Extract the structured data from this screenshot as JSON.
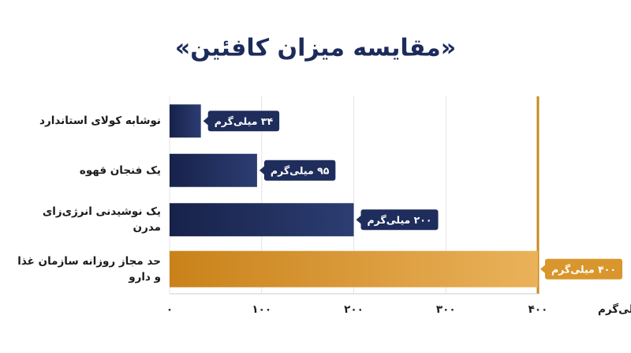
{
  "chart_data": {
    "type": "hbar",
    "title": "«مقایسه میزان کافئین»",
    "categories": [
      "نوشابه کولای استاندارد",
      "یک فنجان قهوه",
      "یک نوشیدنی انرژی‌زای مدرن",
      "حد مجاز روزانه سازمان غذا و دارو"
    ],
    "values": [
      34,
      95,
      200,
      400
    ],
    "value_labels": [
      "۳۴ میلی‌گرم",
      "۹۵ میلی‌گرم",
      "۲۰۰ میلی‌گرم",
      "۴۰۰ میلی‌گرم"
    ],
    "colors": [
      "#1f2d5c",
      "#1f2d5c",
      "#1f2d5c",
      "#d9962c"
    ],
    "xlim": [
      0,
      400
    ],
    "xticks": [
      {
        "value": 0,
        "label": "۰"
      },
      {
        "value": 100,
        "label": "۱۰۰"
      },
      {
        "value": 200,
        "label": "۲۰۰"
      },
      {
        "value": 300,
        "label": "۳۰۰"
      },
      {
        "value": 400,
        "label": "۴۰۰"
      }
    ],
    "xlabel": "میلی‌گرم",
    "grid": true,
    "limit_line_color": "#c98a1e"
  }
}
